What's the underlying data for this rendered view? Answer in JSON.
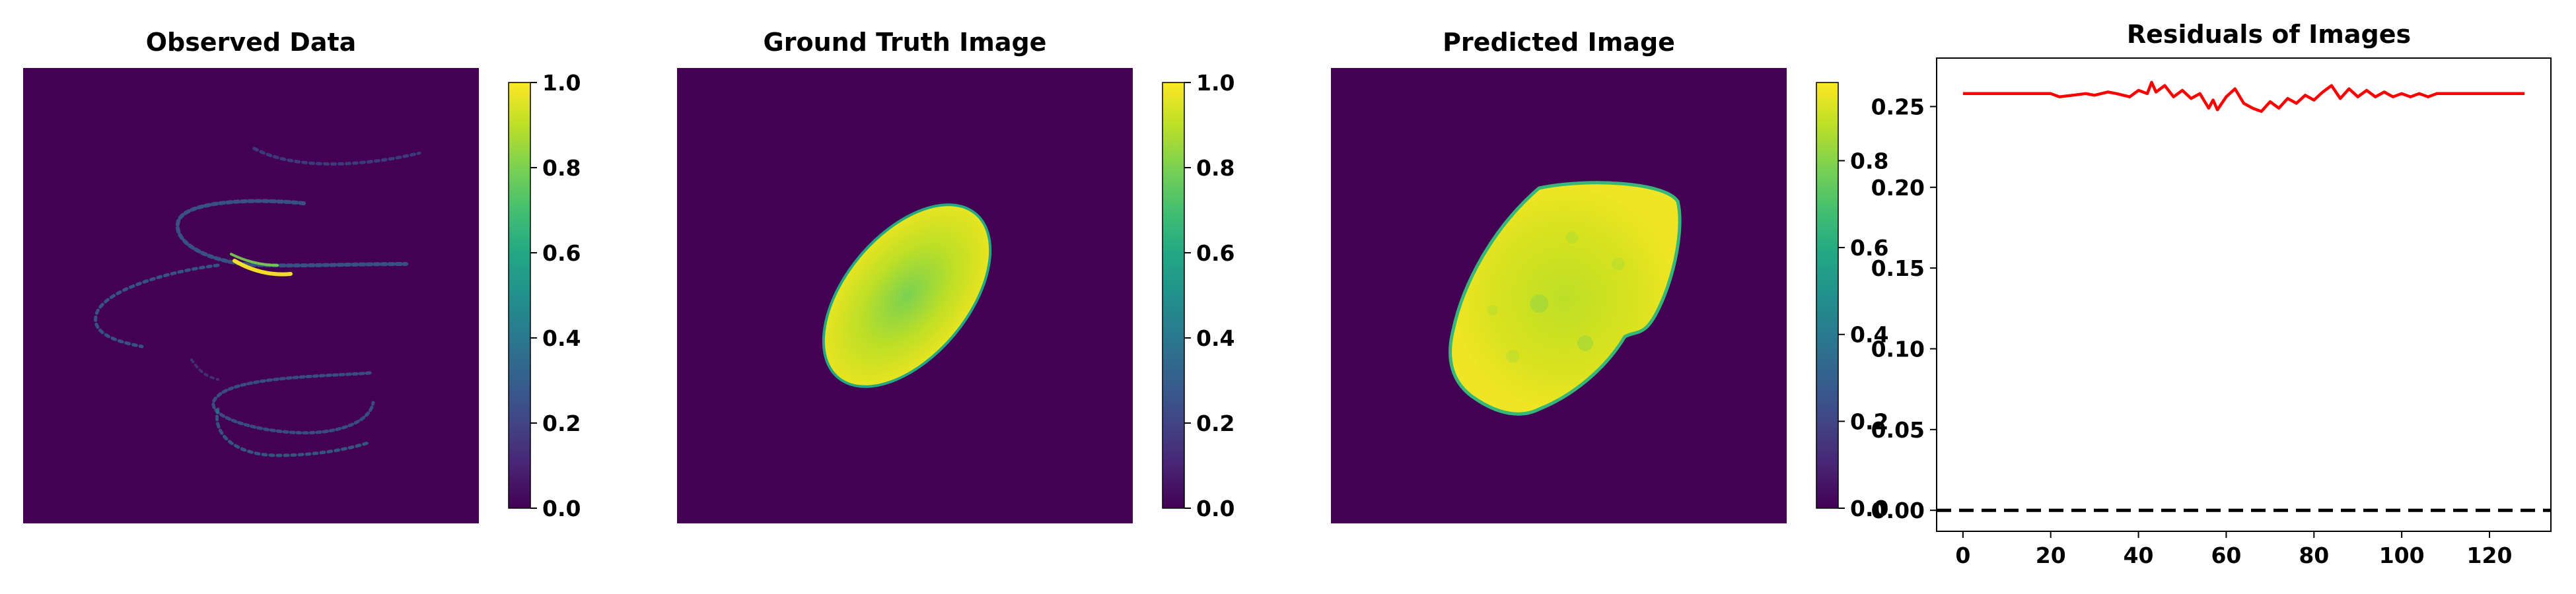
{
  "panels": {
    "observed": {
      "title": "Observed Data",
      "colorbar": {
        "ticks": [
          "1.0",
          "0.8",
          "0.6",
          "0.4",
          "0.2",
          "0.0"
        ]
      }
    },
    "ground_truth": {
      "title": "Ground Truth Image",
      "colorbar": {
        "ticks": [
          "1.0",
          "0.8",
          "0.6",
          "0.4",
          "0.2",
          "0.0"
        ]
      }
    },
    "predicted": {
      "title": "Predicted Image",
      "colorbar": {
        "ticks": [
          "0.8",
          "0.6",
          "0.4",
          "0.2",
          "0.0"
        ]
      }
    },
    "residuals": {
      "title": "Residuals of Images"
    }
  },
  "colors": {
    "viridis_dark": "#440154",
    "viridis_yellow": "#fde725",
    "residual_line": "#ff0000",
    "zero_line": "#000000"
  },
  "chart_data": [
    {
      "type": "heatmap",
      "title": "Observed Data",
      "colormap": "viridis",
      "vmin": 0.0,
      "vmax": 1.0,
      "colorbar_ticks": [
        0.0,
        0.2,
        0.4,
        0.6,
        0.8,
        1.0
      ],
      "description_values": "sparse dim spiral streaks on dark background, peak near 1.0"
    },
    {
      "type": "heatmap",
      "title": "Ground Truth Image",
      "colormap": "viridis",
      "vmin": 0.0,
      "vmax": 1.0,
      "colorbar_ticks": [
        0.0,
        0.2,
        0.4,
        0.6,
        0.8,
        1.0
      ]
    },
    {
      "type": "heatmap",
      "title": "Predicted Image",
      "colormap": "viridis",
      "vmin": 0.0,
      "vmax": 0.98,
      "colorbar_ticks": [
        0.0,
        0.2,
        0.4,
        0.6,
        0.8
      ]
    },
    {
      "type": "line",
      "title": "Residuals of Images",
      "xlabel": "",
      "ylabel": "",
      "xlim": [
        -6,
        134
      ],
      "ylim": [
        -0.013,
        0.28
      ],
      "xticks": [
        0,
        20,
        40,
        60,
        80,
        100,
        120
      ],
      "yticks": [
        0.0,
        0.05,
        0.1,
        0.15,
        0.2,
        0.25
      ],
      "ytick_labels": [
        "0.00",
        "0.05",
        "0.10",
        "0.15",
        "0.20",
        "0.25"
      ],
      "grid": false,
      "series": [
        {
          "x": [
            0,
            5,
            10,
            15,
            20,
            22,
            25,
            28,
            30,
            33,
            35,
            38,
            40,
            42,
            43,
            44,
            46,
            48,
            50,
            52,
            54,
            56,
            57,
            58,
            60,
            62,
            64,
            66,
            68,
            70,
            72,
            74,
            76,
            78,
            80,
            82,
            84,
            86,
            88,
            90,
            92,
            94,
            96,
            98,
            100,
            102,
            104,
            106,
            108,
            110,
            115,
            120,
            128
          ],
          "y": [
            0.258,
            0.258,
            0.258,
            0.258,
            0.258,
            0.256,
            0.257,
            0.258,
            0.257,
            0.259,
            0.258,
            0.256,
            0.26,
            0.258,
            0.265,
            0.259,
            0.263,
            0.256,
            0.26,
            0.255,
            0.258,
            0.249,
            0.254,
            0.248,
            0.256,
            0.261,
            0.252,
            0.249,
            0.247,
            0.253,
            0.249,
            0.255,
            0.252,
            0.257,
            0.254,
            0.259,
            0.263,
            0.255,
            0.261,
            0.256,
            0.26,
            0.256,
            0.259,
            0.256,
            0.258,
            0.256,
            0.258,
            0.256,
            0.258,
            0.258,
            0.258,
            0.258,
            0.258
          ],
          "style": "solid",
          "color": "#ff0000"
        },
        {
          "x": [
            -6,
            134
          ],
          "y": [
            0.0,
            0.0
          ],
          "style": "dashed",
          "color": "#000000"
        }
      ]
    }
  ]
}
